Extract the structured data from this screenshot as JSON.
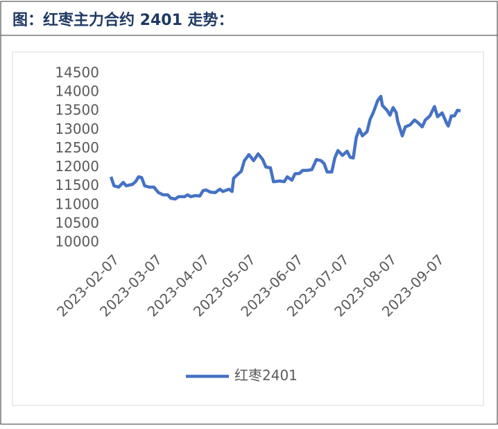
{
  "chart_data": {
    "type": "line",
    "title": "图：红枣主力合约 2401 走势：",
    "x": [
      "2023-02-03",
      "2023-02-05",
      "2023-02-08",
      "2023-02-11",
      "2023-02-13",
      "2023-02-17",
      "2023-02-19",
      "2023-02-21",
      "2023-02-23",
      "2023-02-25",
      "2023-02-28",
      "2023-03-03",
      "2023-03-06",
      "2023-03-09",
      "2023-03-12",
      "2023-03-14",
      "2023-03-17",
      "2023-03-19",
      "2023-03-23",
      "2023-03-25",
      "2023-03-27",
      "2023-03-30",
      "2023-04-02",
      "2023-04-04",
      "2023-04-06",
      "2023-04-09",
      "2023-04-12",
      "2023-04-15",
      "2023-04-17",
      "2023-04-21",
      "2023-04-23",
      "2023-04-24",
      "2023-04-26",
      "2023-04-29",
      "2023-05-01",
      "2023-05-04",
      "2023-05-07",
      "2023-05-10",
      "2023-05-13",
      "2023-05-15",
      "2023-05-18",
      "2023-05-20",
      "2023-05-24",
      "2023-05-27",
      "2023-05-29",
      "2023-06-01",
      "2023-06-03",
      "2023-06-06",
      "2023-06-08",
      "2023-06-11",
      "2023-06-14",
      "2023-06-17",
      "2023-06-20",
      "2023-06-22",
      "2023-06-24",
      "2023-06-27",
      "2023-06-29",
      "2023-07-01",
      "2023-07-04",
      "2023-07-07",
      "2023-07-09",
      "2023-07-11",
      "2023-07-13",
      "2023-07-15",
      "2023-07-17",
      "2023-07-20",
      "2023-07-22",
      "2023-07-24",
      "2023-07-27",
      "2023-07-29",
      "2023-07-30",
      "2023-08-02",
      "2023-08-04",
      "2023-08-06",
      "2023-08-08",
      "2023-08-09",
      "2023-08-12",
      "2023-08-14",
      "2023-08-17",
      "2023-08-20",
      "2023-08-22",
      "2023-08-25",
      "2023-08-27",
      "2023-08-30",
      "2023-09-02",
      "2023-09-04",
      "2023-09-07",
      "2023-09-10",
      "2023-09-11",
      "2023-09-13",
      "2023-09-15",
      "2023-09-17",
      "2023-09-19"
    ],
    "series": [
      {
        "name": "红枣2401",
        "color": "#4472c4",
        "values": [
          11750,
          11510,
          11475,
          11600,
          11510,
          11550,
          11620,
          11750,
          11730,
          11510,
          11475,
          11475,
          11330,
          11270,
          11270,
          11180,
          11160,
          11220,
          11220,
          11270,
          11220,
          11250,
          11240,
          11380,
          11400,
          11340,
          11330,
          11420,
          11360,
          11420,
          11360,
          11710,
          11790,
          11900,
          12180,
          12340,
          12180,
          12360,
          12210,
          12010,
          11990,
          11620,
          11640,
          11620,
          11750,
          11660,
          11830,
          11840,
          11920,
          11920,
          11940,
          12210,
          12180,
          12100,
          11880,
          11880,
          12250,
          12450,
          12320,
          12430,
          12270,
          12250,
          12800,
          13020,
          12840,
          12950,
          13280,
          13450,
          13780,
          13890,
          13650,
          13520,
          13390,
          13590,
          13460,
          13230,
          12840,
          13080,
          13130,
          13260,
          13200,
          13080,
          13260,
          13370,
          13620,
          13350,
          13450,
          13170,
          13100,
          13370,
          13370,
          13520,
          13500
        ]
      }
    ],
    "xlim": [
      "2023-02-03",
      "2023-09-19"
    ],
    "xticks": [
      "2023-02-07",
      "2023-03-07",
      "2023-04-07",
      "2023-05-07",
      "2023-06-07",
      "2023-07-07",
      "2023-08-07",
      "2023-09-07"
    ],
    "ylim": [
      10000,
      14500
    ],
    "yticks": [
      10000,
      10500,
      11000,
      11500,
      12000,
      12500,
      13000,
      13500,
      14000,
      14500
    ],
    "grid": false,
    "legend": "bottom"
  }
}
